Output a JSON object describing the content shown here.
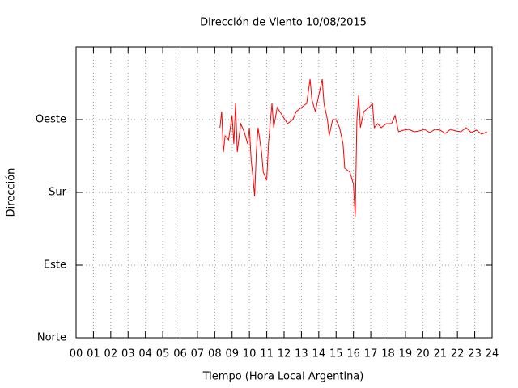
{
  "chart_data": {
    "type": "line",
    "title": "Dirección de Viento 10/08/2015",
    "xlabel": "Tiempo (Hora Local Argentina)",
    "ylabel": "Dirección",
    "x": [
      8.3,
      8.4,
      8.5,
      8.6,
      8.8,
      9.0,
      9.1,
      9.2,
      9.3,
      9.5,
      9.7,
      9.9,
      10.0,
      10.1,
      10.2,
      10.3,
      10.4,
      10.5,
      10.7,
      10.8,
      11.0,
      11.1,
      11.3,
      11.4,
      11.6,
      11.9,
      12.2,
      12.5,
      12.7,
      13.0,
      13.3,
      13.5,
      13.6,
      13.8,
      14.0,
      14.2,
      14.3,
      14.5,
      14.6,
      14.8,
      15.0,
      15.2,
      15.4,
      15.5,
      15.8,
      16.0,
      16.1,
      16.2,
      16.3,
      16.4,
      16.6,
      16.9,
      17.1,
      17.2,
      17.4,
      17.6,
      17.9,
      18.2,
      18.4,
      18.6,
      18.9,
      19.2,
      19.5,
      19.8,
      20.1,
      20.4,
      20.7,
      21.0,
      21.3,
      21.6,
      21.9,
      22.2,
      22.5,
      22.8,
      23.1,
      23.4,
      23.7
    ],
    "series": [
      {
        "name": "Dirección",
        "color": "#ff0000",
        "values": [
          260,
          280,
          230,
          250,
          245,
          275,
          240,
          290,
          230,
          265,
          255,
          240,
          260,
          220,
          200,
          175,
          230,
          260,
          230,
          205,
          195,
          240,
          290,
          260,
          285,
          275,
          265,
          270,
          280,
          285,
          290,
          320,
          295,
          280,
          300,
          320,
          290,
          270,
          250,
          270,
          270,
          260,
          240,
          210,
          205,
          190,
          150,
          270,
          300,
          260,
          280,
          285,
          290,
          260,
          265,
          260,
          265,
          265,
          275,
          255,
          257,
          258,
          255,
          256,
          258,
          254,
          258,
          257,
          253,
          258,
          256,
          255,
          260,
          254,
          257,
          252,
          255
        ]
      }
    ],
    "xlim": [
      0,
      24
    ],
    "xticks": [
      {
        "value": 0,
        "label": "00"
      },
      {
        "value": 1,
        "label": "01"
      },
      {
        "value": 2,
        "label": "02"
      },
      {
        "value": 3,
        "label": "03"
      },
      {
        "value": 4,
        "label": "04"
      },
      {
        "value": 5,
        "label": "05"
      },
      {
        "value": 6,
        "label": "06"
      },
      {
        "value": 7,
        "label": "07"
      },
      {
        "value": 8,
        "label": "08"
      },
      {
        "value": 9,
        "label": "09"
      },
      10,
      11,
      12,
      13,
      14,
      15,
      16,
      17,
      18,
      19,
      20,
      21,
      22,
      23,
      24
    ],
    "ylim": [
      0,
      360
    ],
    "yticks": [
      {
        "value": 0,
        "label": "Norte"
      },
      {
        "value": 90,
        "label": "Este"
      },
      {
        "value": 180,
        "label": "Sur"
      },
      {
        "value": 270,
        "label": "Oeste"
      }
    ],
    "grid": true
  }
}
